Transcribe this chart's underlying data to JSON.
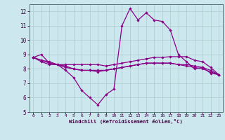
{
  "xlabel": "Windchill (Refroidissement éolien,°C)",
  "bg_color": "#cce8ee",
  "grid_color": "#aacccc",
  "line_color": "#880088",
  "xlim": [
    -0.5,
    23.5
  ],
  "ylim": [
    5,
    12.5
  ],
  "yticks": [
    5,
    6,
    7,
    8,
    9,
    10,
    11,
    12
  ],
  "xticks": [
    0,
    1,
    2,
    3,
    4,
    5,
    6,
    7,
    8,
    9,
    10,
    11,
    12,
    13,
    14,
    15,
    16,
    17,
    18,
    19,
    20,
    21,
    22,
    23
  ],
  "hours": [
    0,
    1,
    2,
    3,
    4,
    5,
    6,
    7,
    8,
    9,
    10,
    11,
    12,
    13,
    14,
    15,
    16,
    17,
    18,
    19,
    20,
    21,
    22,
    23
  ],
  "line1": [
    8.8,
    9.0,
    8.4,
    8.3,
    7.9,
    7.4,
    6.5,
    6.0,
    5.5,
    6.2,
    6.6,
    11.0,
    12.2,
    11.4,
    11.9,
    11.4,
    11.3,
    10.7,
    9.0,
    8.5,
    8.0,
    8.1,
    7.7,
    7.6
  ],
  "line2": [
    8.8,
    8.5,
    8.3,
    8.3,
    8.3,
    8.3,
    8.3,
    8.3,
    8.3,
    8.2,
    8.3,
    8.4,
    8.5,
    8.6,
    8.7,
    8.8,
    8.8,
    8.85,
    8.85,
    8.85,
    8.6,
    8.5,
    8.1,
    7.6
  ],
  "line3": [
    8.8,
    8.6,
    8.4,
    8.3,
    8.1,
    8.0,
    7.9,
    7.9,
    7.9,
    7.9,
    8.0,
    8.1,
    8.2,
    8.3,
    8.4,
    8.4,
    8.4,
    8.4,
    8.3,
    8.3,
    8.2,
    8.1,
    7.9,
    7.6
  ],
  "line4": [
    8.8,
    8.6,
    8.5,
    8.3,
    8.2,
    8.0,
    7.9,
    7.9,
    7.8,
    7.9,
    8.0,
    8.1,
    8.2,
    8.3,
    8.4,
    8.4,
    8.4,
    8.4,
    8.3,
    8.2,
    8.1,
    8.0,
    7.8,
    7.6
  ]
}
